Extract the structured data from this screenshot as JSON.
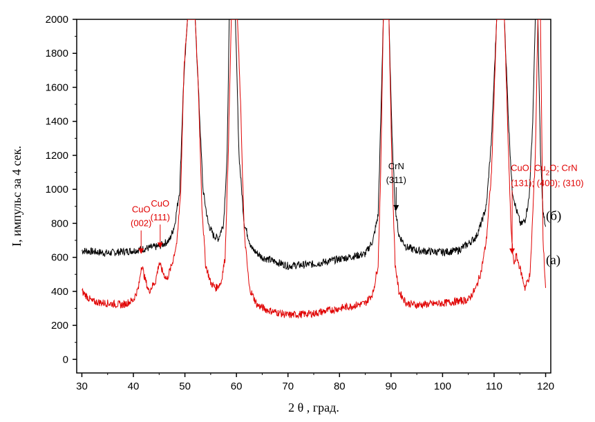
{
  "chart_data": {
    "type": "line",
    "xlabel": "2 θ ,  град.",
    "ylabel": "I, импульс за 4 сек.",
    "xlim": [
      29,
      121
    ],
    "ylim": [
      -80,
      2000
    ],
    "xticks": [
      30,
      40,
      50,
      60,
      70,
      80,
      90,
      100,
      110,
      120
    ],
    "yticks": [
      0,
      200,
      400,
      600,
      800,
      1000,
      1200,
      1400,
      1600,
      1800,
      2000
    ],
    "colors": {
      "a": "#e00000",
      "b": "#000000"
    },
    "series": [
      {
        "name": "(б)",
        "color": "#000000",
        "x": [
          30,
          35,
          40,
          42,
          45,
          47,
          48,
          49,
          49.7,
          50.5,
          51,
          51.5,
          52,
          52.6,
          53.5,
          54.5,
          55.5,
          56.5,
          57.5,
          58.2,
          58.6,
          59.2,
          59.8,
          60.5,
          61.5,
          63,
          65,
          70,
          75,
          80,
          85,
          86.5,
          87.5,
          88,
          88.5,
          89,
          89.6,
          90.2,
          90.8,
          91.5,
          93,
          95,
          100,
          103,
          105,
          106.5,
          107.5,
          108.5,
          109.5,
          110.5,
          111.3,
          112,
          112.8,
          113.5,
          114.3,
          115.2,
          116,
          116.8,
          117.5,
          118,
          118.5,
          119,
          119.5,
          120
        ],
        "values": [
          640,
          625,
          640,
          650,
          665,
          700,
          790,
          1000,
          1600,
          2000,
          2000,
          2000,
          2000,
          1600,
          1000,
          800,
          730,
          710,
          800,
          1200,
          2000,
          2000,
          2000,
          1200,
          800,
          650,
          600,
          550,
          560,
          590,
          620,
          700,
          850,
          1400,
          2000,
          2000,
          2000,
          1300,
          900,
          730,
          660,
          640,
          630,
          640,
          680,
          720,
          800,
          900,
          1300,
          2000,
          2000,
          2000,
          1400,
          1000,
          880,
          790,
          820,
          950,
          1400,
          2000,
          2000,
          1200,
          860,
          780
        ]
      },
      {
        "name": "(а)",
        "color": "#e00000",
        "x": [
          30,
          32,
          35,
          38,
          40,
          41,
          41.6,
          42.2,
          43,
          44.3,
          45,
          45.6,
          46.5,
          47.5,
          48.5,
          49.2,
          49.8,
          50.5,
          51,
          51.5,
          52,
          52.6,
          53.3,
          54,
          55,
          56,
          57,
          57.8,
          58.4,
          59,
          59.6,
          60.2,
          60.8,
          61.5,
          62.5,
          64,
          66,
          70,
          75,
          80,
          85,
          86.5,
          87.5,
          88,
          88.5,
          89,
          89.6,
          90.2,
          90.8,
          91.5,
          93,
          95,
          100,
          105,
          106.5,
          107.5,
          108.5,
          109.5,
          110.5,
          111.3,
          112,
          112.8,
          113.3,
          113.8,
          114.3,
          115,
          116,
          117,
          118,
          118.5,
          119,
          119.5,
          120
        ],
        "values": [
          400,
          340,
          330,
          320,
          350,
          420,
          560,
          480,
          400,
          460,
          570,
          520,
          470,
          560,
          700,
          1000,
          1700,
          2000,
          2000,
          2000,
          2000,
          1600,
          900,
          560,
          450,
          420,
          450,
          600,
          1200,
          2000,
          2000,
          2000,
          1500,
          750,
          420,
          320,
          290,
          260,
          270,
          300,
          330,
          390,
          560,
          1100,
          2000,
          2000,
          2000,
          1100,
          560,
          400,
          330,
          320,
          330,
          350,
          420,
          520,
          700,
          1100,
          2000,
          2000,
          2000,
          1200,
          760,
          560,
          610,
          540,
          420,
          500,
          1200,
          2000,
          2000,
          700,
          420
        ]
      }
    ],
    "annotations": [
      {
        "id": "cuo002",
        "lines": [
          "CuO",
          "(002)"
        ],
        "color": "#e00000",
        "x": 41.5,
        "y_tip": 620
      },
      {
        "id": "cuo111",
        "lines": [
          "CuO",
          "(111)"
        ],
        "color": "#e00000",
        "x": 45.2,
        "y_tip": 655
      },
      {
        "id": "crn311",
        "lines": [
          "CrN",
          "(311)"
        ],
        "color": "#000000",
        "x": 91.0,
        "y_tip": 875
      },
      {
        "id": "multi",
        "color": "#e00000",
        "x": 113.5,
        "y_tip": 620,
        "line1_parts": [
          {
            "text": "CuO; Cu",
            "sub": false
          },
          {
            "text": "2",
            "sub": true
          },
          {
            "text": "O; CrN",
            "sub": false
          }
        ],
        "line2": "(131); (400); (310)"
      }
    ],
    "series_labels": {
      "b": "(б)",
      "a": "(а)"
    }
  }
}
